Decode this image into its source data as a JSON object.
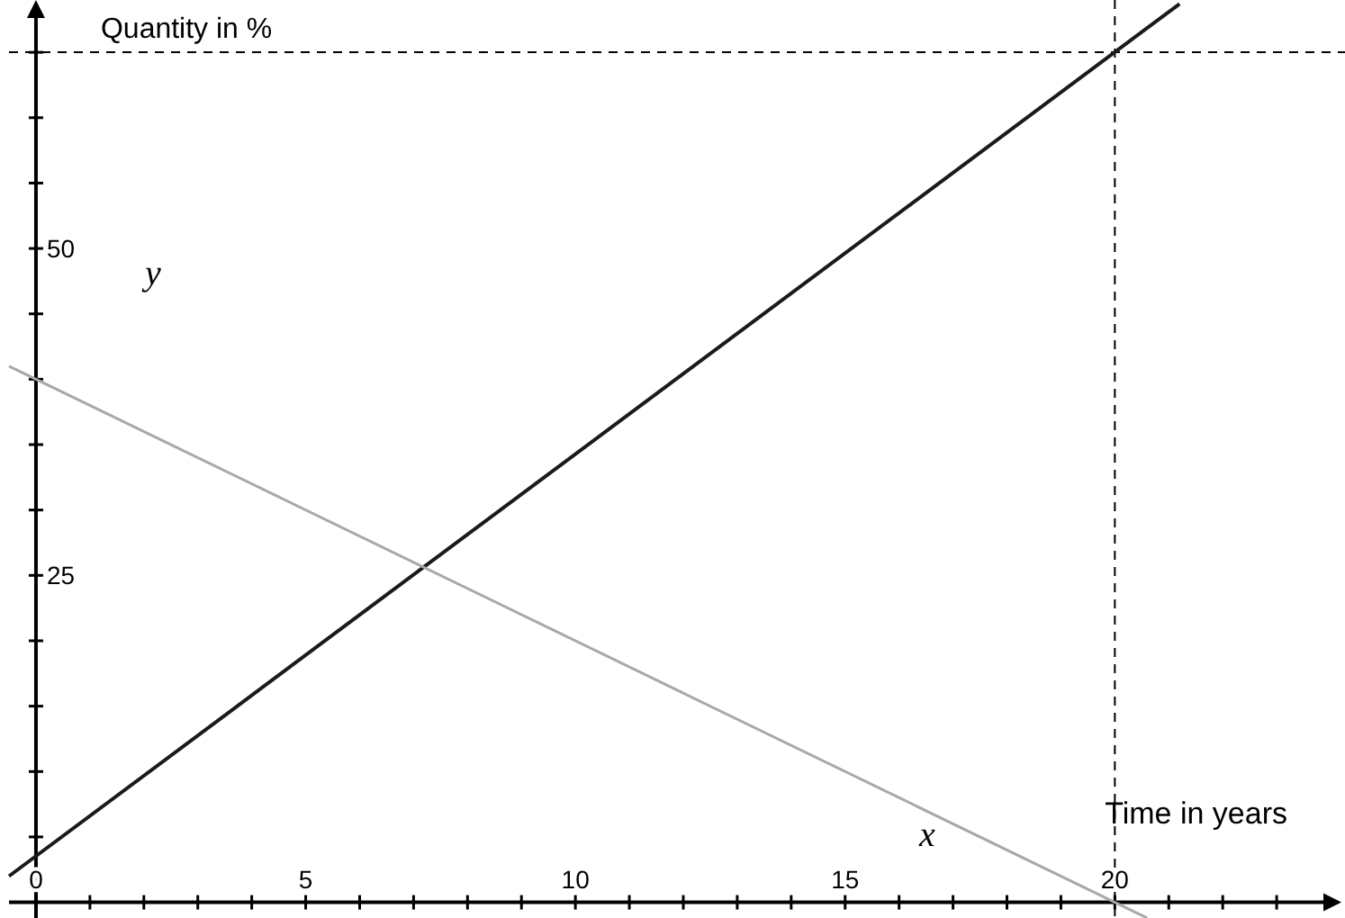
{
  "chart_data": {
    "type": "line",
    "xlabel": "Time in years",
    "ylabel": "Quantity in %",
    "xlim": [
      -0.5,
      24.2
    ],
    "ylim": [
      -1.2,
      69
    ],
    "xticks": [
      {
        "value": 0,
        "label": "0"
      },
      {
        "value": 1,
        "label": null
      },
      {
        "value": 2,
        "label": null
      },
      {
        "value": 3,
        "label": null
      },
      {
        "value": 4,
        "label": null
      },
      5,
      {
        "value": 6,
        "label": null
      },
      {
        "value": 7,
        "label": null
      },
      {
        "value": 8,
        "label": null
      },
      {
        "value": 9,
        "label": null
      },
      10,
      {
        "value": 11,
        "label": null
      },
      {
        "value": 12,
        "label": null
      },
      {
        "value": 13,
        "label": null
      },
      {
        "value": 14,
        "label": null
      },
      15,
      {
        "value": 16,
        "label": null
      },
      {
        "value": 17,
        "label": null
      },
      {
        "value": 18,
        "label": null
      },
      {
        "value": 19,
        "label": null
      },
      20,
      {
        "value": 21,
        "label": null
      },
      {
        "value": 22,
        "label": null
      },
      {
        "value": 23,
        "label": null
      }
    ],
    "yticks": [
      {
        "value": 5,
        "label": null
      },
      {
        "value": 10,
        "label": null
      },
      {
        "value": 15,
        "label": null
      },
      {
        "value": 20,
        "label": null
      },
      25,
      {
        "value": 30,
        "label": null
      },
      {
        "value": 35,
        "label": null
      },
      {
        "value": 40,
        "label": null
      },
      {
        "value": 45,
        "label": null
      },
      50,
      {
        "value": 55,
        "label": null
      },
      {
        "value": 60,
        "label": null
      },
      {
        "value": 65,
        "label": null
      }
    ],
    "series": [
      {
        "color": "#1a1a1a",
        "x": [
          -0.5,
          21.2
        ],
        "values": [
          2,
          68.7
        ]
      },
      {
        "color": "#a8a8a8",
        "x": [
          -0.5,
          20.6
        ],
        "values": [
          41,
          -1.2
        ]
      }
    ],
    "ref_lines": [
      {
        "axis": "x",
        "value": 20,
        "line_style": "dashed",
        "color": "#000000"
      },
      {
        "axis": "y",
        "value": 65,
        "line_style": "dashed",
        "color": "#000000"
      }
    ],
    "annotations": [
      "y",
      "x"
    ],
    "grid": false,
    "marker": "none",
    "line_style": "solid"
  }
}
